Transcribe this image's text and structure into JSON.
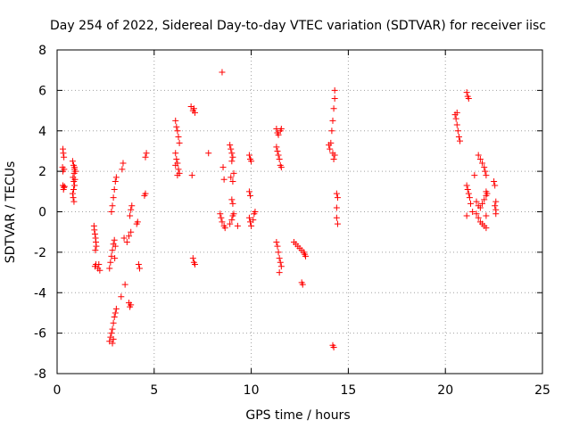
{
  "chart_data": {
    "type": "scatter",
    "title": "Day 254 of 2022, Sidereal Day-to-day VTEC variation (SDTVAR) for receiver iisc",
    "xlabel": "GPS time / hours",
    "ylabel": "SDTVAR / TECUs",
    "xlim": [
      0,
      25
    ],
    "ylim": [
      -8,
      8
    ],
    "x_ticks": [
      0,
      5,
      10,
      15,
      20,
      25
    ],
    "y_ticks": [
      -8,
      -6,
      -4,
      -2,
      0,
      2,
      4,
      6,
      8
    ],
    "grid": true,
    "marker": "+",
    "marker_color": "#ff0000",
    "series": [
      {
        "name": "SDTVAR",
        "points": [
          [
            0.3,
            3.1
          ],
          [
            0.32,
            2.9
          ],
          [
            0.35,
            2.7
          ],
          [
            0.28,
            2.2
          ],
          [
            0.36,
            2.1
          ],
          [
            0.3,
            1.3
          ],
          [
            0.35,
            1.2
          ],
          [
            0.33,
            1.1
          ],
          [
            0.38,
            1.25
          ],
          [
            0.3,
            2.0
          ],
          [
            0.8,
            2.5
          ],
          [
            0.85,
            2.3
          ],
          [
            0.9,
            2.1
          ],
          [
            0.88,
            1.9
          ],
          [
            0.82,
            1.7
          ],
          [
            0.86,
            1.5
          ],
          [
            0.9,
            1.3
          ],
          [
            0.85,
            1.1
          ],
          [
            0.8,
            0.9
          ],
          [
            0.83,
            0.7
          ],
          [
            0.87,
            0.5
          ],
          [
            0.92,
            1.6
          ],
          [
            0.95,
            2.0
          ],
          [
            0.9,
            2.2
          ],
          [
            1.9,
            -0.7
          ],
          [
            1.92,
            -0.9
          ],
          [
            1.95,
            -1.1
          ],
          [
            1.98,
            -1.3
          ],
          [
            2.0,
            -1.5
          ],
          [
            2.02,
            -1.7
          ],
          [
            1.97,
            -1.9
          ],
          [
            2.0,
            -2.6
          ],
          [
            1.95,
            -2.7
          ],
          [
            2.1,
            -2.8
          ],
          [
            2.2,
            -2.9
          ],
          [
            2.15,
            -2.6
          ],
          [
            2.7,
            -2.8
          ],
          [
            2.75,
            -2.5
          ],
          [
            2.8,
            -2.2
          ],
          [
            2.85,
            -1.9
          ],
          [
            2.9,
            -1.6
          ],
          [
            2.95,
            -1.4
          ],
          [
            2.8,
            0.0
          ],
          [
            2.85,
            0.3
          ],
          [
            2.9,
            0.7
          ],
          [
            2.95,
            1.1
          ],
          [
            3.0,
            1.5
          ],
          [
            3.05,
            1.7
          ],
          [
            3.0,
            -1.7
          ],
          [
            2.97,
            -2.3
          ],
          [
            2.7,
            -6.4
          ],
          [
            2.75,
            -6.2
          ],
          [
            2.8,
            -6.0
          ],
          [
            2.85,
            -5.8
          ],
          [
            2.9,
            -5.5
          ],
          [
            2.95,
            -5.2
          ],
          [
            3.0,
            -5.0
          ],
          [
            3.05,
            -4.8
          ],
          [
            2.85,
            -6.5
          ],
          [
            2.9,
            -6.3
          ],
          [
            3.3,
            -4.2
          ],
          [
            3.35,
            2.1
          ],
          [
            3.4,
            2.4
          ],
          [
            3.45,
            -1.3
          ],
          [
            3.5,
            -3.6
          ],
          [
            3.6,
            -1.5
          ],
          [
            3.7,
            -1.2
          ],
          [
            3.8,
            -1.0
          ],
          [
            3.75,
            -0.2
          ],
          [
            3.8,
            0.1
          ],
          [
            3.85,
            0.3
          ],
          [
            3.7,
            -4.5
          ],
          [
            3.75,
            -4.7
          ],
          [
            3.8,
            -4.6
          ],
          [
            4.1,
            -0.6
          ],
          [
            4.15,
            -0.5
          ],
          [
            4.2,
            -2.6
          ],
          [
            4.25,
            -2.8
          ],
          [
            4.5,
            0.8
          ],
          [
            4.55,
            0.9
          ],
          [
            4.55,
            2.7
          ],
          [
            4.6,
            2.9
          ],
          [
            6.1,
            4.5
          ],
          [
            6.15,
            4.2
          ],
          [
            6.2,
            4.0
          ],
          [
            6.25,
            3.7
          ],
          [
            6.3,
            3.4
          ],
          [
            6.1,
            2.9
          ],
          [
            6.15,
            2.6
          ],
          [
            6.2,
            2.4
          ],
          [
            6.25,
            2.1
          ],
          [
            6.3,
            1.9
          ],
          [
            6.2,
            1.8
          ],
          [
            6.1,
            2.3
          ],
          [
            6.9,
            5.2
          ],
          [
            7.0,
            5.0
          ],
          [
            7.05,
            5.1
          ],
          [
            7.1,
            4.9
          ],
          [
            6.95,
            1.8
          ],
          [
            7.0,
            -2.3
          ],
          [
            7.05,
            -2.5
          ],
          [
            7.1,
            -2.6
          ],
          [
            7.8,
            2.9
          ],
          [
            8.5,
            6.9
          ],
          [
            8.4,
            -0.1
          ],
          [
            8.45,
            -0.3
          ],
          [
            8.5,
            -0.5
          ],
          [
            8.6,
            -0.7
          ],
          [
            8.65,
            -0.8
          ],
          [
            8.55,
            2.2
          ],
          [
            8.6,
            1.6
          ],
          [
            8.9,
            3.3
          ],
          [
            8.95,
            3.1
          ],
          [
            9.0,
            2.9
          ],
          [
            9.05,
            2.7
          ],
          [
            9.0,
            2.5
          ],
          [
            9.1,
            1.9
          ],
          [
            9.05,
            1.5
          ],
          [
            8.95,
            1.7
          ],
          [
            9.0,
            0.6
          ],
          [
            9.05,
            0.4
          ],
          [
            9.0,
            -0.4
          ],
          [
            9.05,
            -0.2
          ],
          [
            8.9,
            -0.6
          ],
          [
            9.1,
            -0.1
          ],
          [
            9.3,
            -0.7
          ],
          [
            9.9,
            2.8
          ],
          [
            9.95,
            2.6
          ],
          [
            10.0,
            2.5
          ],
          [
            9.9,
            1.0
          ],
          [
            9.95,
            0.8
          ],
          [
            9.9,
            -0.3
          ],
          [
            9.95,
            -0.5
          ],
          [
            10.0,
            -0.7
          ],
          [
            10.1,
            -0.4
          ],
          [
            10.15,
            -0.1
          ],
          [
            10.2,
            0.0
          ],
          [
            11.3,
            4.1
          ],
          [
            11.35,
            3.9
          ],
          [
            11.4,
            3.8
          ],
          [
            11.5,
            4.0
          ],
          [
            11.55,
            4.1
          ],
          [
            11.3,
            3.2
          ],
          [
            11.35,
            3.0
          ],
          [
            11.4,
            2.8
          ],
          [
            11.45,
            2.6
          ],
          [
            11.5,
            2.3
          ],
          [
            11.55,
            2.2
          ],
          [
            11.3,
            -1.5
          ],
          [
            11.35,
            -1.7
          ],
          [
            11.4,
            -2.0
          ],
          [
            11.45,
            -2.3
          ],
          [
            11.5,
            -2.5
          ],
          [
            11.55,
            -2.7
          ],
          [
            11.45,
            -3.0
          ],
          [
            12.2,
            -1.5
          ],
          [
            12.3,
            -1.6
          ],
          [
            12.4,
            -1.7
          ],
          [
            12.5,
            -1.8
          ],
          [
            12.6,
            -1.9
          ],
          [
            12.7,
            -2.0
          ],
          [
            12.75,
            -2.1
          ],
          [
            12.8,
            -2.2
          ],
          [
            12.6,
            -3.5
          ],
          [
            12.65,
            -3.6
          ],
          [
            14.0,
            3.3
          ],
          [
            14.05,
            3.1
          ],
          [
            14.1,
            3.4
          ],
          [
            14.15,
            4.0
          ],
          [
            14.2,
            4.5
          ],
          [
            14.25,
            5.1
          ],
          [
            14.3,
            5.6
          ],
          [
            14.3,
            6.0
          ],
          [
            14.2,
            2.9
          ],
          [
            14.25,
            2.6
          ],
          [
            14.3,
            2.8
          ],
          [
            14.4,
            0.9
          ],
          [
            14.45,
            0.7
          ],
          [
            14.4,
            0.2
          ],
          [
            14.4,
            -0.3
          ],
          [
            14.45,
            -0.6
          ],
          [
            14.2,
            -6.6
          ],
          [
            14.25,
            -6.7
          ],
          [
            20.5,
            4.8
          ],
          [
            20.55,
            4.6
          ],
          [
            20.6,
            4.3
          ],
          [
            20.65,
            4.0
          ],
          [
            20.7,
            3.7
          ],
          [
            20.75,
            3.5
          ],
          [
            20.6,
            4.9
          ],
          [
            21.1,
            5.9
          ],
          [
            21.15,
            5.7
          ],
          [
            21.2,
            5.6
          ],
          [
            21.1,
            1.3
          ],
          [
            21.15,
            1.1
          ],
          [
            21.2,
            0.9
          ],
          [
            21.25,
            0.7
          ],
          [
            21.3,
            0.4
          ],
          [
            21.1,
            -0.2
          ],
          [
            21.4,
            0.0
          ],
          [
            21.5,
            1.8
          ],
          [
            21.6,
            -0.1
          ],
          [
            21.7,
            -0.3
          ],
          [
            21.8,
            -0.5
          ],
          [
            21.9,
            -0.6
          ],
          [
            22.0,
            -0.7
          ],
          [
            22.1,
            -0.8
          ],
          [
            21.6,
            0.5
          ],
          [
            21.7,
            0.3
          ],
          [
            21.8,
            0.2
          ],
          [
            21.9,
            0.4
          ],
          [
            22.0,
            0.6
          ],
          [
            22.1,
            0.8
          ],
          [
            21.7,
            2.8
          ],
          [
            21.8,
            2.6
          ],
          [
            21.9,
            2.4
          ],
          [
            22.0,
            2.2
          ],
          [
            22.05,
            2.0
          ],
          [
            22.1,
            1.8
          ],
          [
            22.1,
            1.0
          ],
          [
            22.15,
            0.9
          ],
          [
            22.1,
            -0.2
          ],
          [
            22.5,
            1.5
          ],
          [
            22.55,
            1.3
          ],
          [
            22.55,
            0.3
          ],
          [
            22.6,
            0.1
          ],
          [
            22.6,
            -0.1
          ],
          [
            22.6,
            0.5
          ]
        ]
      }
    ]
  }
}
